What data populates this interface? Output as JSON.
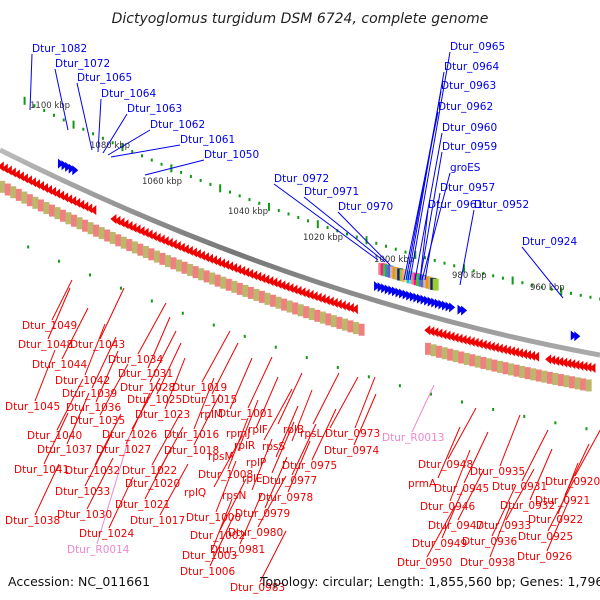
{
  "title": "Dictyoglomus turgidum DSM 6724, complete genome",
  "footer": {
    "accession": "Accession: NC_011661",
    "summary": "Topology: circular; Length: 1,855,560 bp; Genes: 1,796"
  },
  "colors": {
    "forward": "#0000ee",
    "reverse": "#ee0000",
    "rna": "#ee88cc",
    "backbone": "#888888",
    "tick": "#119911"
  },
  "scale": {
    "unit": "kbp",
    "labels": [
      "1100 kbp",
      "1080 kbp",
      "1060 kbp",
      "1040 kbp",
      "1020 kbp",
      "1000 kbp",
      "980 kbp",
      "960 kbp"
    ]
  },
  "forward_labels": [
    "Dtur_1082",
    "Dtur_1072",
    "Dtur_1065",
    "Dtur_1064",
    "Dtur_1063",
    "Dtur_1062",
    "Dtur_1061",
    "Dtur_1050",
    "Dtur_0972",
    "Dtur_0971",
    "Dtur_0970",
    "Dtur_0965",
    "Dtur_0964",
    "Dtur_0963",
    "Dtur_0962",
    "Dtur_0960",
    "Dtur_0959",
    "groES",
    "Dtur_0957",
    "Dtur_0961",
    "Dtur_0952",
    "Dtur_0924"
  ],
  "reverse_labels": [
    "Dtur_1049",
    "Dtur_1048",
    "Dtur_1043",
    "Dtur_1044",
    "Dtur_1034",
    "Dtur_1042",
    "Dtur_1031",
    "Dtur_1039",
    "Dtur_1028",
    "Dtur_1019",
    "Dtur_1045",
    "Dtur_1036",
    "Dtur_1025",
    "Dtur_1015",
    "Dtur_1035",
    "Dtur_1023",
    "rplM",
    "Dtur_1001",
    "Dtur_1040",
    "Dtur_1026",
    "Dtur_1016",
    "rpmJ",
    "rplF",
    "rplB",
    "rpsL",
    "Dtur_0973",
    "Dtur_1037",
    "Dtur_1027",
    "Dtur_1018",
    "rplR",
    "rpsS",
    "Dtur_0974",
    "Dtur_1041",
    "Dtur_1032",
    "Dtur_1022",
    "rpsM",
    "rplP",
    "Dtur_0975",
    "Dtur_1033",
    "Dtur_1020",
    "Dtur_1008",
    "rplE",
    "Dtur_0977",
    "Dtur_1021",
    "rplQ",
    "rpsN",
    "Dtur_0978",
    "Dtur_1038",
    "Dtur_1030",
    "Dtur_1017",
    "Dtur_1000",
    "Dtur_0979",
    "Dtur_1024",
    "Dtur_1002",
    "Dtur_0980",
    "Dtur_1003",
    "Dtur_0981",
    "Dtur_1006",
    "Dtur_0983",
    "Dtur_0948",
    "Dtur_0935",
    "prmA",
    "Dtur_0945",
    "Dtur_0931",
    "Dtur_0920",
    "Dtur_0946",
    "Dtur_0932",
    "Dtur_0921",
    "Dtur_0947",
    "Dtur_0933",
    "Dtur_0922",
    "Dtur_0949",
    "Dtur_0936",
    "Dtur_0925",
    "Dtur_0950",
    "Dtur_0938",
    "Dtur_0926"
  ],
  "rna_labels": [
    "Dtur_R0013",
    "Dtur_R0014"
  ]
}
